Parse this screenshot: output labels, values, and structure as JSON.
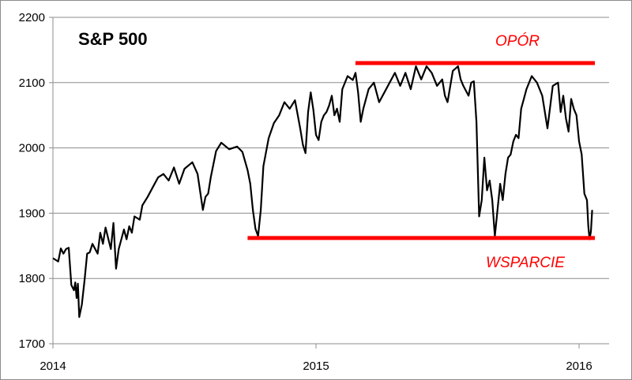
{
  "chart_data": {
    "type": "line",
    "title": "S&P 500",
    "xlabel": "",
    "ylabel": "",
    "x_ticks": [
      "2014",
      "2015",
      "2016"
    ],
    "x_tick_values": [
      2014.0,
      2015.0,
      2016.0
    ],
    "xlim": [
      2014.0,
      2016.06
    ],
    "y_ticks": [
      1700,
      1800,
      1900,
      2000,
      2100,
      2200
    ],
    "ylim": [
      1700,
      2200
    ],
    "grid": "horizontal",
    "legend": "none",
    "series": [
      {
        "color": "#000000",
        "x": [
          2014.0,
          2014.02,
          2014.03,
          2014.04,
          2014.05,
          2014.06,
          2014.07,
          2014.08,
          2014.085,
          2014.09,
          2014.095,
          2014.1,
          2014.11,
          2014.12,
          2014.13,
          2014.14,
          2014.15,
          2014.17,
          2014.18,
          2014.19,
          2014.2,
          2014.22,
          2014.23,
          2014.24,
          2014.25,
          2014.27,
          2014.28,
          2014.29,
          2014.3,
          2014.31,
          2014.33,
          2014.34,
          2014.36,
          2014.38,
          2014.4,
          2014.42,
          2014.44,
          2014.46,
          2014.48,
          2014.5,
          2014.53,
          2014.55,
          2014.57,
          2014.58,
          2014.59,
          2014.6,
          2014.62,
          2014.64,
          2014.67,
          2014.7,
          2014.72,
          2014.74,
          2014.75,
          2014.76,
          2014.77,
          2014.78,
          2014.79,
          2014.8,
          2014.82,
          2014.84,
          2014.86,
          2014.88,
          2014.9,
          2014.92,
          2014.94,
          2014.95,
          2014.96,
          2014.97,
          2014.98,
          2014.99,
          2015.0,
          2015.01,
          2015.02,
          2015.03,
          2015.04,
          2015.05,
          2015.06,
          2015.07,
          2015.08,
          2015.09,
          2015.1,
          2015.12,
          2015.14,
          2015.15,
          2015.16,
          2015.17,
          2015.18,
          2015.2,
          2015.22,
          2015.24,
          2015.26,
          2015.28,
          2015.3,
          2015.32,
          2015.34,
          2015.36,
          2015.38,
          2015.4,
          2015.42,
          2015.44,
          2015.46,
          2015.48,
          2015.49,
          2015.5,
          2015.52,
          2015.54,
          2015.55,
          2015.56,
          2015.58,
          2015.59,
          2015.6,
          2015.61,
          2015.62,
          2015.63,
          2015.64,
          2015.65,
          2015.66,
          2015.67,
          2015.68,
          2015.7,
          2015.71,
          2015.72,
          2015.73,
          2015.74,
          2015.75,
          2015.76,
          2015.77,
          2015.78,
          2015.79,
          2015.8,
          2015.82,
          2015.84,
          2015.86,
          2015.88,
          2015.9,
          2015.92,
          2015.93,
          2015.94,
          2015.95,
          2015.96,
          2015.97,
          2015.98,
          2015.99,
          2016.0,
          2016.01,
          2016.02,
          2016.03,
          2016.035,
          2016.04,
          2016.045,
          2016.05
        ],
        "values": [
          1831,
          1826,
          1846,
          1838,
          1845,
          1847,
          1790,
          1782,
          1794,
          1770,
          1792,
          1741,
          1760,
          1797,
          1838,
          1840,
          1853,
          1838,
          1870,
          1853,
          1878,
          1845,
          1885,
          1815,
          1845,
          1875,
          1860,
          1880,
          1870,
          1895,
          1890,
          1912,
          1925,
          1940,
          1955,
          1960,
          1950,
          1970,
          1945,
          1968,
          1978,
          1960,
          1905,
          1925,
          1930,
          1955,
          1995,
          2008,
          1998,
          2002,
          1994,
          1966,
          1945,
          1905,
          1876,
          1865,
          1905,
          1972,
          2015,
          2038,
          2050,
          2070,
          2060,
          2073,
          2030,
          2005,
          1992,
          2055,
          2085,
          2058,
          2020,
          2012,
          2040,
          2050,
          2055,
          2065,
          2080,
          2050,
          2060,
          2040,
          2090,
          2110,
          2104,
          2115,
          2085,
          2040,
          2060,
          2090,
          2100,
          2070,
          2085,
          2100,
          2115,
          2095,
          2115,
          2090,
          2125,
          2105,
          2125,
          2115,
          2095,
          2105,
          2080,
          2070,
          2118,
          2125,
          2105,
          2095,
          2080,
          2100,
          2102,
          2040,
          1895,
          1920,
          1985,
          1935,
          1950,
          1920,
          1865,
          1945,
          1920,
          1960,
          1985,
          1990,
          2010,
          2020,
          2015,
          2060,
          2075,
          2090,
          2110,
          2100,
          2080,
          2030,
          2095,
          2100,
          2055,
          2080,
          2045,
          2025,
          2075,
          2060,
          2050,
          2010,
          1990,
          1930,
          1920,
          1880,
          1860,
          1872,
          1905
        ]
      }
    ],
    "annotations": [
      {
        "text": "OPÓR",
        "level": 2130,
        "x_start": 2015.15,
        "x_end": 2016.06,
        "color": "#ff0000"
      },
      {
        "text": "WSPARCIE",
        "level": 1862,
        "x_start": 2014.74,
        "x_end": 2016.06,
        "color": "#ff0000"
      }
    ]
  }
}
